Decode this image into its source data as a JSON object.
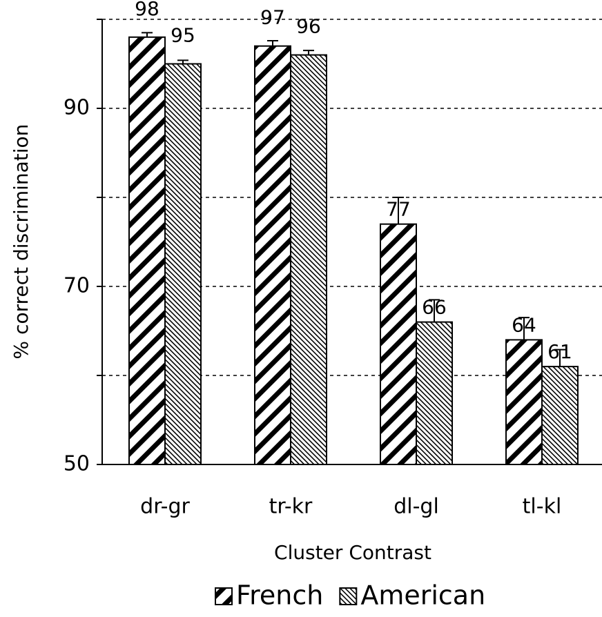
{
  "chart_data": {
    "type": "bar",
    "x_label": "Cluster Contrast",
    "y_label": "% correct discrimination",
    "categories": [
      "dr-gr",
      "tr-kr",
      "dl-gl",
      "tl-kl"
    ],
    "series": [
      {
        "name": "French",
        "color": "#000000",
        "pattern": "thick-diagonal",
        "values": [
          98,
          97,
          77,
          64
        ],
        "errors": [
          0.5,
          0.6,
          3,
          2.5
        ]
      },
      {
        "name": "American",
        "color": "#000000",
        "pattern": "fine-diagonal",
        "values": [
          95,
          96,
          66,
          61
        ],
        "errors": [
          0.4,
          0.5,
          2.5,
          1.9
        ]
      }
    ],
    "ylim": [
      50,
      100
    ],
    "yticks": [
      50,
      70,
      90
    ],
    "minor_yticks": [
      60,
      80,
      100
    ],
    "grid": true,
    "legend": "bottom"
  }
}
